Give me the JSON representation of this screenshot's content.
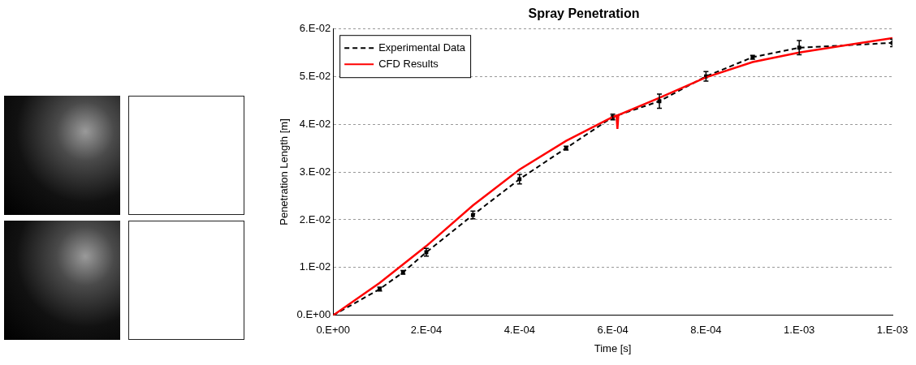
{
  "chart_data": {
    "type": "line",
    "title": "Spray Penetration",
    "x_label": "Time [s]",
    "y_label": "Penetration Length [m]",
    "xlim": [
      0,
      0.0012
    ],
    "xticks": [
      {
        "value": 0,
        "label": "0.E+00"
      },
      {
        "value": 0.0002,
        "label": "2.E-04"
      },
      {
        "value": 0.0004,
        "label": "4.E-04"
      },
      {
        "value": 0.0006,
        "label": "6.E-04"
      },
      {
        "value": 0.0008,
        "label": "8.E-04"
      },
      {
        "value": 0.001,
        "label": "1.E-03"
      },
      {
        "value": 0.0012,
        "label": "1.E-03"
      }
    ],
    "ylim": [
      0,
      0.06
    ],
    "yticks": [
      {
        "value": 0,
        "label": "0.E+00"
      },
      {
        "value": 0.01,
        "label": "1.E-02"
      },
      {
        "value": 0.02,
        "label": "2.E-02"
      },
      {
        "value": 0.03,
        "label": "3.E-02"
      },
      {
        "value": 0.04,
        "label": "4.E-02"
      },
      {
        "value": 0.05,
        "label": "5.E-02"
      },
      {
        "value": 0.06,
        "label": "6.E-02"
      }
    ],
    "grid": true,
    "legend": "top-left",
    "series": [
      {
        "name": "Experimental Data",
        "color": "#000000",
        "line_style": "dashed",
        "marker": "square",
        "x": [
          0,
          0.0001,
          0.00015,
          0.0002,
          0.0003,
          0.0004,
          0.0005,
          0.0006,
          0.0007,
          0.0008,
          0.0009,
          0.001,
          0.0012
        ],
        "values": [
          0,
          0.0055,
          0.009,
          0.0132,
          0.021,
          0.0285,
          0.035,
          0.0415,
          0.0448,
          0.05,
          0.054,
          0.056,
          0.057
        ],
        "errors": [
          0,
          0.0004,
          0.0004,
          0.0008,
          0.0008,
          0.001,
          0.0004,
          0.0006,
          0.0015,
          0.001,
          0.0004,
          0.0015,
          0.0008
        ]
      },
      {
        "name": "CFD Results",
        "color": "#ff0000",
        "line_style": "solid",
        "marker": "none",
        "x": [
          0,
          0.0001,
          0.0002,
          0.0003,
          0.0004,
          0.0005,
          0.0006,
          0.000608,
          0.00061,
          0.000612,
          0.0007,
          0.0008,
          0.0009,
          0.001,
          0.0011,
          0.0012
        ],
        "values": [
          0,
          0.0068,
          0.0145,
          0.023,
          0.0305,
          0.0365,
          0.0415,
          0.0418,
          0.039,
          0.0419,
          0.0455,
          0.0498,
          0.053,
          0.055,
          0.0565,
          0.058
        ]
      }
    ]
  }
}
